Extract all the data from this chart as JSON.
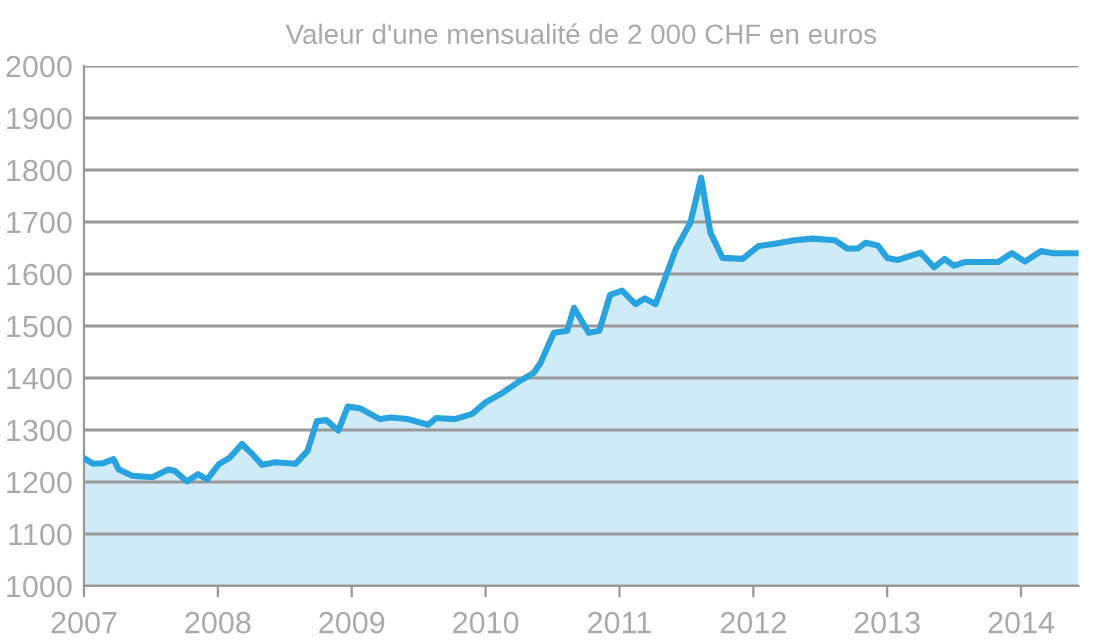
{
  "chart_data": {
    "type": "area",
    "title": "Valeur d'une mensualité de 2 000 CHF en euros",
    "series": [
      {
        "color": "#29a3e0",
        "x": [
          2007.0,
          2007.07,
          2007.14,
          2007.22,
          2007.26,
          2007.36,
          2007.51,
          2007.63,
          2007.68,
          2007.77,
          2007.85,
          2007.92,
          2008.01,
          2008.09,
          2008.18,
          2008.26,
          2008.33,
          2008.43,
          2008.58,
          2008.67,
          2008.74,
          2008.81,
          2008.9,
          2008.97,
          2009.06,
          2009.21,
          2009.29,
          2009.42,
          2009.57,
          2009.63,
          2009.77,
          2009.9,
          2010.0,
          2010.13,
          2010.26,
          2010.36,
          2010.41,
          2010.51,
          2010.61,
          2010.66,
          2010.77,
          2010.85,
          2010.93,
          2011.02,
          2011.12,
          2011.19,
          2011.27,
          2011.42,
          2011.53,
          2011.61,
          2011.68,
          2011.77,
          2011.92,
          2012.04,
          2012.16,
          2012.31,
          2012.44,
          2012.61,
          2012.7,
          2012.78,
          2012.84,
          2012.93,
          2013.0,
          2013.08,
          2013.25,
          2013.35,
          2013.43,
          2013.5,
          2013.58,
          2013.83,
          2013.93,
          2014.03,
          2014.15,
          2014.24,
          2014.43
        ],
        "values": [
          1246,
          1235,
          1236,
          1244,
          1224,
          1212,
          1209,
          1224,
          1221,
          1201,
          1215,
          1205,
          1235,
          1247,
          1273,
          1253,
          1233,
          1238,
          1235,
          1260,
          1317,
          1319,
          1299,
          1345,
          1342,
          1321,
          1324,
          1321,
          1310,
          1323,
          1321,
          1331,
          1353,
          1372,
          1395,
          1410,
          1429,
          1487,
          1491,
          1535,
          1487,
          1491,
          1560,
          1568,
          1542,
          1553,
          1542,
          1647,
          1699,
          1785,
          1679,
          1631,
          1629,
          1654,
          1658,
          1665,
          1668,
          1665,
          1649,
          1649,
          1660,
          1655,
          1631,
          1627,
          1641,
          1613,
          1629,
          1616,
          1623,
          1623,
          1640,
          1624,
          1644,
          1640,
          1640
        ]
      }
    ],
    "xlim": [
      2007,
      2014.43
    ],
    "xticks": [
      2007,
      2008,
      2009,
      2010,
      2011,
      2012,
      2013,
      2014
    ],
    "ylim": [
      1000,
      2000
    ],
    "yticks": [
      1000,
      1100,
      1200,
      1300,
      1400,
      1500,
      1600,
      1700,
      1800,
      1900,
      2000
    ],
    "grid": "y",
    "legend": false
  }
}
